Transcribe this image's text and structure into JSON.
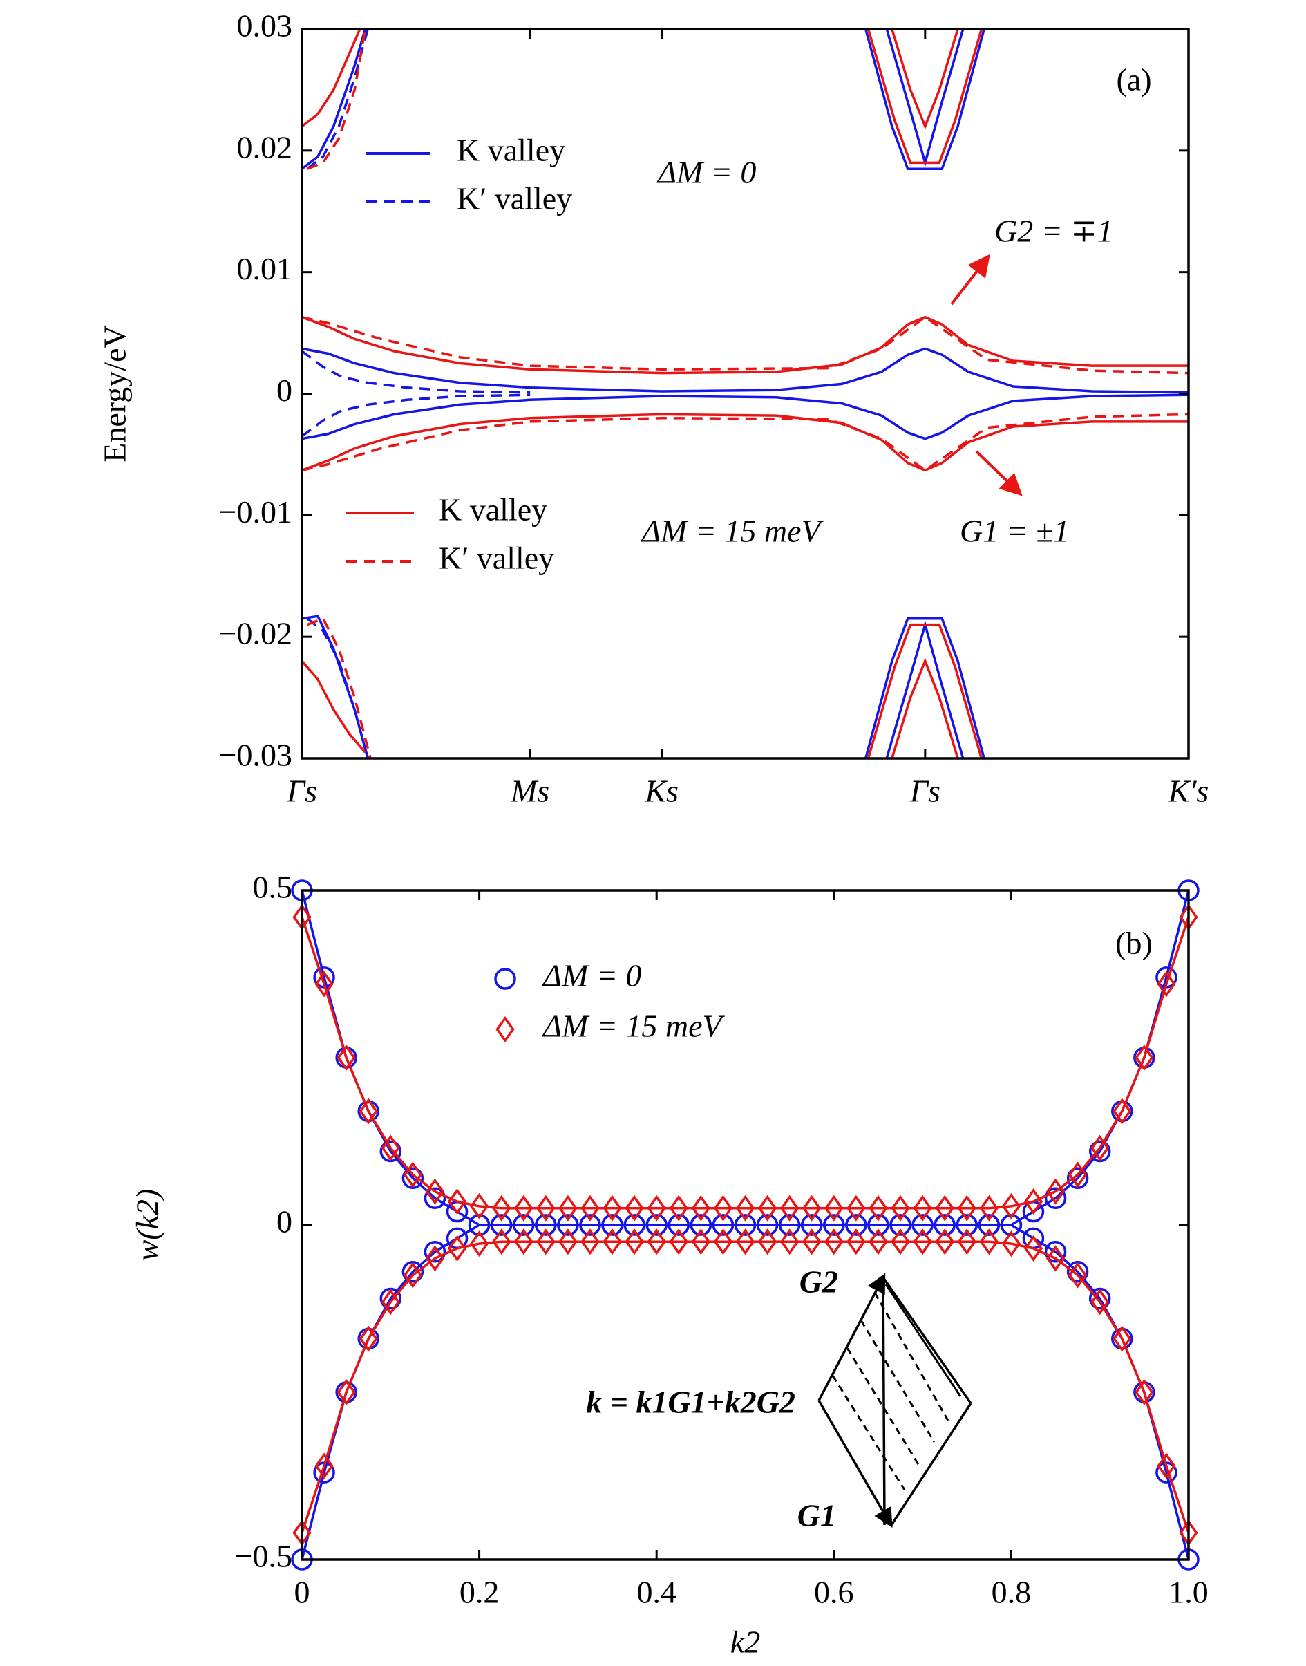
{
  "chart_data": [
    {
      "type": "line",
      "ylabel": "Energy/eV",
      "annotations": [
        "(a)",
        "ΔM = 0",
        "ΔM = 15 meV",
        "G2 = ∓1",
        "G1 = ±1"
      ],
      "xlim": [
        0,
        3.366
      ],
      "xticks": [
        {
          "value": 0,
          "label": "Γs"
        },
        {
          "value": 0.866,
          "label": "Ms"
        },
        {
          "value": 1.366,
          "label": "Ks"
        },
        {
          "value": 2.366,
          "label": "Γs"
        },
        {
          "value": 3.366,
          "label": "K′s"
        }
      ],
      "ylim": [
        -0.03,
        0.03
      ],
      "yticks": [
        {
          "value": -0.03,
          "label": "−0.03"
        },
        {
          "value": -0.02,
          "label": "−0.02"
        },
        {
          "value": -0.01,
          "label": "−0.01"
        },
        0,
        0.01,
        0.02,
        0.03
      ],
      "series": [
        {
          "name": "K valley",
          "color": "#1515e8",
          "dashed": false,
          "x": [
            0,
            0.1,
            0.2,
            0.35,
            0.6,
            0.866,
            1.366,
            1.8,
            2.05,
            2.2,
            2.3,
            2.366,
            2.43,
            2.53,
            2.7,
            3.0,
            3.366,
            null,
            0,
            0.1,
            0.2,
            0.35,
            0.6,
            0.866,
            1.366,
            1.8,
            2.05,
            2.2,
            2.3,
            2.366,
            2.43,
            2.53,
            2.7,
            3.0,
            3.366,
            null,
            0,
            0.06,
            0.12,
            0.2,
            0.24,
            null,
            0,
            0.06,
            0.12,
            0.2,
            0.25,
            null,
            2.14,
            2.24,
            2.3,
            2.366,
            2.43,
            2.49,
            2.59,
            null,
            2.22,
            2.3,
            2.366,
            2.43,
            2.51,
            null,
            2.14,
            2.24,
            2.3,
            2.366,
            2.43,
            2.49,
            2.59,
            null,
            2.22,
            2.3,
            2.366,
            2.43,
            2.51
          ],
          "values": [
            0.0037,
            0.0033,
            0.0025,
            0.0017,
            0.0009,
            0.0005,
            0.0002,
            0.0003,
            0.0008,
            0.0018,
            0.0032,
            0.0037,
            0.0032,
            0.0018,
            0.0006,
            0.0002,
            0.0001,
            null,
            -0.0037,
            -0.0033,
            -0.0025,
            -0.0017,
            -0.0009,
            -0.0005,
            -0.0002,
            -0.0003,
            -0.0008,
            -0.0018,
            -0.0032,
            -0.0037,
            -0.0032,
            -0.0018,
            -0.0006,
            -0.0002,
            -0.0001,
            null,
            0.0185,
            0.0195,
            0.022,
            0.027,
            0.03,
            null,
            -0.0185,
            -0.0183,
            -0.021,
            -0.026,
            -0.03,
            null,
            0.03,
            0.022,
            0.0185,
            0.0185,
            0.0185,
            0.022,
            0.03,
            null,
            0.03,
            0.024,
            0.019,
            0.024,
            0.03,
            null,
            -0.03,
            -0.022,
            -0.0185,
            -0.0185,
            -0.0185,
            -0.022,
            -0.03,
            null,
            -0.03,
            -0.024,
            -0.019,
            -0.024,
            -0.03
          ]
        },
        {
          "name": "K′ valley",
          "color": "#1515e8",
          "dashed": true,
          "x": [
            0,
            0.08,
            0.15,
            0.25,
            0.4,
            0.6,
            0.866,
            null,
            0,
            0.08,
            0.15,
            0.25,
            0.4,
            0.6,
            0.866,
            null,
            0.02,
            0.08,
            0.14,
            0.2,
            0.25,
            null,
            0.02,
            0.08,
            0.14,
            0.2,
            0.25
          ],
          "values": [
            0.0035,
            0.0022,
            0.0014,
            0.0009,
            0.0005,
            0.0002,
            0.0001,
            null,
            -0.0035,
            -0.0022,
            -0.0014,
            -0.0009,
            -0.0005,
            -0.0002,
            -0.0001,
            null,
            0.0185,
            0.0195,
            0.022,
            0.026,
            0.03,
            null,
            -0.0185,
            -0.0195,
            -0.022,
            -0.026,
            -0.03
          ]
        },
        {
          "name": "K valley",
          "color": "#e81515",
          "dashed": false,
          "x": [
            0,
            0.1,
            0.2,
            0.35,
            0.6,
            0.866,
            1.366,
            1.8,
            2.05,
            2.2,
            2.3,
            2.366,
            2.43,
            2.53,
            2.7,
            3.0,
            3.366,
            null,
            0,
            0.1,
            0.2,
            0.35,
            0.6,
            0.866,
            1.366,
            1.8,
            2.05,
            2.2,
            2.3,
            2.366,
            2.43,
            2.53,
            2.7,
            3.0,
            3.366,
            null,
            0,
            0.06,
            0.12,
            0.18,
            0.22,
            null,
            0,
            0.06,
            0.12,
            0.18,
            0.24,
            null,
            2.15,
            2.25,
            2.31,
            2.366,
            2.42,
            2.48,
            2.58,
            null,
            2.24,
            2.31,
            2.366,
            2.42,
            2.49,
            null,
            2.15,
            2.25,
            2.31,
            2.366,
            2.42,
            2.48,
            2.58,
            null,
            2.24,
            2.31,
            2.366,
            2.42,
            2.49
          ],
          "values": [
            0.0063,
            0.0055,
            0.0045,
            0.0035,
            0.0025,
            0.002,
            0.0017,
            0.0018,
            0.0024,
            0.0038,
            0.0057,
            0.0063,
            0.0057,
            0.004,
            0.0027,
            0.0023,
            0.0023,
            null,
            -0.0063,
            -0.0055,
            -0.0045,
            -0.0035,
            -0.0025,
            -0.002,
            -0.0017,
            -0.0018,
            -0.0024,
            -0.0038,
            -0.0057,
            -0.0063,
            -0.0057,
            -0.004,
            -0.0027,
            -0.0023,
            -0.0023,
            null,
            0.022,
            0.023,
            0.025,
            0.028,
            0.03,
            null,
            -0.022,
            -0.0235,
            -0.026,
            -0.028,
            -0.0295,
            null,
            0.03,
            0.0225,
            0.019,
            0.019,
            0.019,
            0.0225,
            0.03,
            null,
            0.03,
            0.025,
            0.022,
            0.025,
            0.03,
            null,
            -0.03,
            -0.0225,
            -0.019,
            -0.019,
            -0.019,
            -0.0225,
            -0.03,
            null,
            -0.03,
            -0.025,
            -0.022,
            -0.025,
            -0.03
          ]
        },
        {
          "name": "K′ valley",
          "color": "#e81515",
          "dashed": true,
          "x": [
            0,
            0.1,
            0.3,
            0.6,
            0.866,
            1.366,
            2.0,
            2.2,
            2.366,
            2.6,
            3.0,
            3.366,
            null,
            0,
            0.1,
            0.3,
            0.6,
            0.866,
            1.366,
            2.0,
            2.2,
            2.366,
            2.6,
            3.0,
            3.366,
            null,
            0.02,
            0.08,
            0.14,
            0.2,
            0.24,
            null,
            0.02,
            0.08,
            0.14,
            0.2,
            0.26
          ],
          "values": [
            0.0063,
            0.0058,
            0.0045,
            0.003,
            0.0023,
            0.002,
            0.0021,
            0.0037,
            0.0063,
            0.0028,
            0.0019,
            0.0017,
            null,
            -0.0063,
            -0.0058,
            -0.0045,
            -0.003,
            -0.0023,
            -0.002,
            -0.0021,
            -0.0037,
            -0.0063,
            -0.0028,
            -0.0019,
            -0.0017,
            null,
            0.0185,
            0.019,
            0.021,
            0.025,
            0.03,
            null,
            -0.019,
            -0.0185,
            -0.021,
            -0.025,
            -0.03
          ]
        }
      ]
    },
    {
      "type": "line",
      "xlabel": "k2",
      "ylabel": "w(k2)",
      "annotations": [
        "(b)",
        "k = k1G1+k2G2",
        "G2",
        "G1"
      ],
      "xlim": [
        0,
        1
      ],
      "xticks": [
        0,
        0.2,
        0.4,
        0.6,
        0.8,
        {
          "value": 1,
          "label": "1.0"
        }
      ],
      "ylim": [
        -0.5,
        0.5
      ],
      "yticks": [
        {
          "value": -0.5,
          "label": "−0.5"
        },
        0,
        0.5
      ],
      "x": [
        0,
        0.025,
        0.05,
        0.075,
        0.1,
        0.125,
        0.15,
        0.175,
        0.2,
        0.225,
        0.25,
        0.275,
        0.3,
        0.325,
        0.35,
        0.375,
        0.4,
        0.425,
        0.45,
        0.475,
        0.5,
        0.525,
        0.55,
        0.575,
        0.6,
        0.625,
        0.65,
        0.675,
        0.7,
        0.725,
        0.75,
        0.775,
        0.8,
        0.825,
        0.85,
        0.875,
        0.9,
        0.925,
        0.95,
        0.975,
        1
      ],
      "series": [
        {
          "name": "ΔM = 0",
          "color": "#1515e8",
          "marker": "circle",
          "values": [
            0.5,
            0.37,
            0.25,
            0.17,
            0.11,
            0.07,
            0.04,
            0.02,
            0,
            0,
            0,
            0,
            0,
            0,
            0,
            0,
            0,
            0,
            0,
            0,
            0,
            0,
            0,
            0,
            0,
            0,
            0,
            0,
            0,
            0,
            0,
            0,
            0,
            0.02,
            0.04,
            0.07,
            0.11,
            0.17,
            0.25,
            0.37,
            0.5
          ],
          "lower": [
            -0.5,
            -0.37,
            -0.25,
            -0.17,
            -0.11,
            -0.07,
            -0.04,
            -0.02,
            0,
            0,
            0,
            0,
            0,
            0,
            0,
            0,
            0,
            0,
            0,
            0,
            0,
            0,
            0,
            0,
            0,
            0,
            0,
            0,
            0,
            0,
            0,
            0,
            0,
            -0.02,
            -0.04,
            -0.07,
            -0.11,
            -0.17,
            -0.25,
            -0.37,
            -0.5
          ]
        },
        {
          "name": "ΔM = 15 meV",
          "color": "#e81515",
          "marker": "diamond",
          "values": [
            0.46,
            0.36,
            0.25,
            0.17,
            0.115,
            0.075,
            0.05,
            0.035,
            0.028,
            0.025,
            0.025,
            0.025,
            0.025,
            0.025,
            0.025,
            0.025,
            0.025,
            0.025,
            0.025,
            0.025,
            0.025,
            0.025,
            0.025,
            0.025,
            0.025,
            0.025,
            0.025,
            0.025,
            0.025,
            0.025,
            0.025,
            0.025,
            0.028,
            0.035,
            0.05,
            0.075,
            0.115,
            0.17,
            0.25,
            0.36,
            0.46
          ],
          "lower": [
            -0.46,
            -0.36,
            -0.25,
            -0.17,
            -0.115,
            -0.075,
            -0.05,
            -0.035,
            -0.028,
            -0.025,
            -0.025,
            -0.025,
            -0.025,
            -0.025,
            -0.025,
            -0.025,
            -0.025,
            -0.025,
            -0.025,
            -0.025,
            -0.025,
            -0.025,
            -0.025,
            -0.025,
            -0.025,
            -0.025,
            -0.025,
            -0.025,
            -0.025,
            -0.025,
            -0.025,
            -0.025,
            -0.028,
            -0.035,
            -0.05,
            -0.075,
            -0.115,
            -0.17,
            -0.25,
            -0.36,
            -0.46
          ]
        }
      ]
    }
  ]
}
